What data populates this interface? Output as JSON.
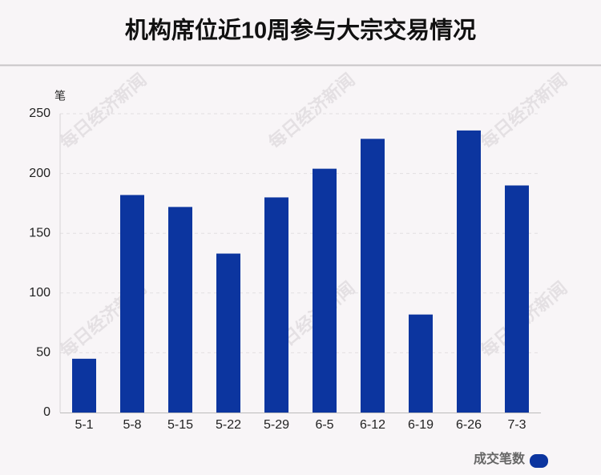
{
  "chart_data": {
    "type": "bar",
    "title": "机构席位近10周参与大宗交易情况",
    "y_label": "笔",
    "watermark": "每日经济新闻",
    "categories": [
      "5-1",
      "5-8",
      "5-15",
      "5-22",
      "5-29",
      "6-5",
      "6-12",
      "6-19",
      "6-26",
      "7-3"
    ],
    "series": [
      {
        "name": "成交笔数",
        "color": "#0c359f",
        "values": [
          45,
          182,
          172,
          133,
          180,
          204,
          229,
          82,
          236,
          190
        ]
      }
    ],
    "ylim": [
      0,
      250
    ],
    "yticks": [
      0,
      50,
      100,
      150,
      200,
      250
    ],
    "grid": true,
    "legend": "bottom-right"
  }
}
